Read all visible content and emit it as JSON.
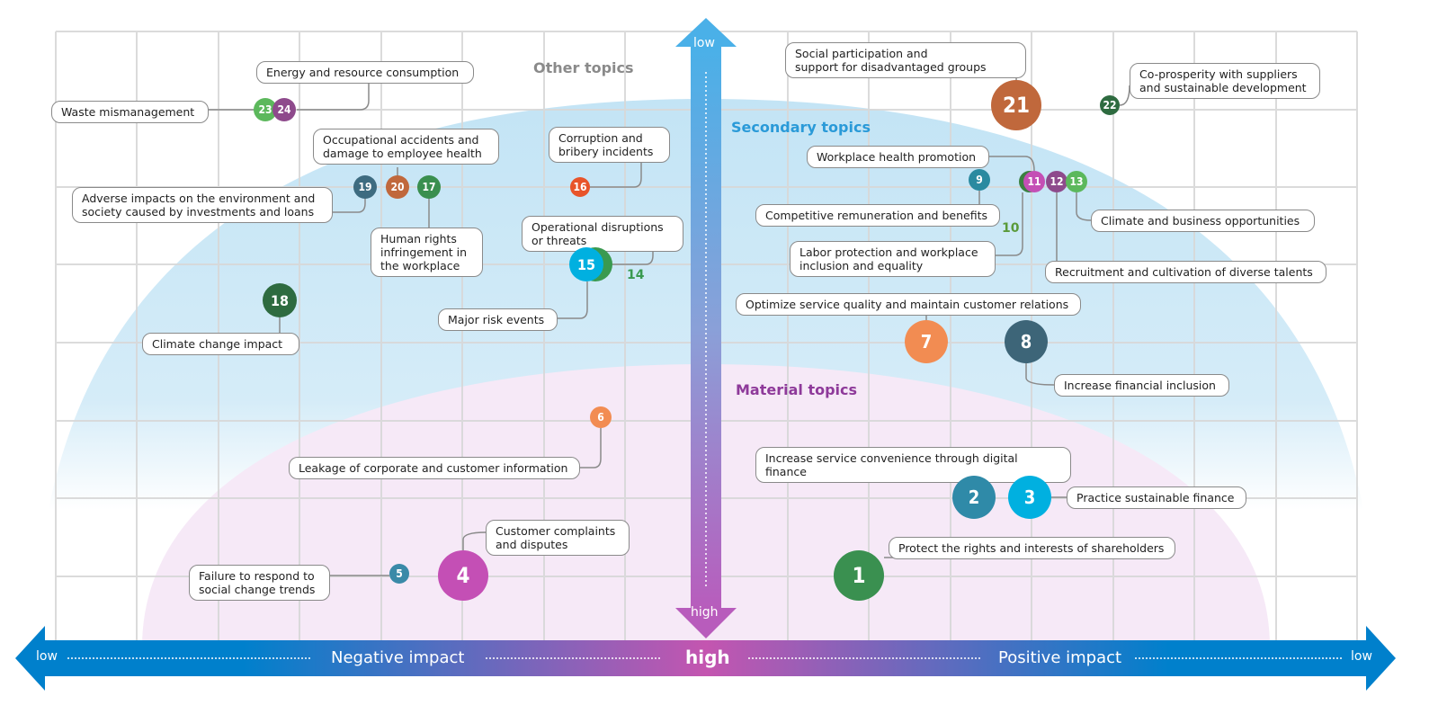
{
  "zones": {
    "other": "Other topics",
    "secondary": "Secondary topics",
    "material": "Material topics"
  },
  "axes": {
    "vertical_top": "low",
    "vertical_bottom": "high",
    "horizontal_left": "low",
    "horizontal_right": "low",
    "center": "high",
    "negative": "Negative impact",
    "positive": "Positive impact"
  },
  "colors": {
    "secondary_zone": "#c9e7f6",
    "material_zone": "#f6e8f6",
    "secondary_text": "#2a9ad8",
    "material_text": "#8e3a9a",
    "other_text": "#8a8a8a"
  },
  "topics": [
    {
      "n": "1",
      "label": "Protect the rights and interests of shareholders",
      "color": "#3a9050"
    },
    {
      "n": "2",
      "label": "Increase service convenience through digital finance",
      "color": "#2f8aa8"
    },
    {
      "n": "3",
      "label": "Practice sustainable finance",
      "color": "#00b0e0"
    },
    {
      "n": "4",
      "label": "Customer complaints\nand disputes",
      "color": "#c44fb5"
    },
    {
      "n": "5",
      "label": "Failure to respond to\nsocial change trends",
      "color": "#3a8aa8"
    },
    {
      "n": "6",
      "label": "Leakage of corporate and customer information",
      "color": "#f28c52"
    },
    {
      "n": "7",
      "label": "Optimize service quality and maintain customer relations",
      "color": "#f28c52"
    },
    {
      "n": "8",
      "label": "Increase financial inclusion",
      "color": "#3d6578"
    },
    {
      "n": "9",
      "label": "Competitive remuneration and benefits",
      "color": "#2a8aa0"
    },
    {
      "n": "10",
      "label": "Labor protection and workplace\ninclusion and equality",
      "color": "#3a8040"
    },
    {
      "n": "11",
      "label": "Workplace health promotion",
      "color": "#c44fb5"
    },
    {
      "n": "12",
      "label": "Recruitment and cultivation of diverse talents",
      "color": "#8e4a8c"
    },
    {
      "n": "13",
      "label": "Climate and business opportunities",
      "color": "#5cb85c"
    },
    {
      "n": "14",
      "label": "Major risk events",
      "color": "#3a9a50"
    },
    {
      "n": "15",
      "label": "Operational disruptions\nor threats",
      "color": "#00b0e0"
    },
    {
      "n": "16",
      "label": "Corruption and\nbribery incidents",
      "color": "#e8542a"
    },
    {
      "n": "17",
      "label": "Human rights\ninfringement in\nthe workplace",
      "color": "#3a8f4f"
    },
    {
      "n": "18",
      "label": "Climate change impact",
      "color": "#2e6b40"
    },
    {
      "n": "19",
      "label": "Adverse impacts on the environment and\nsociety caused by investments and loans",
      "color": "#3d6b80"
    },
    {
      "n": "20",
      "label": "Occupational accidents and\ndamage to employee health",
      "color": "#c0683c"
    },
    {
      "n": "21",
      "label": "Social participation and\nsupport for disadvantaged groups",
      "color": "#c0683c"
    },
    {
      "n": "22",
      "label": "Co-prosperity with suppliers\nand sustainable development",
      "color": "#2e6b40"
    },
    {
      "n": "23",
      "label": "Waste mismanagement",
      "color": "#5cb85c"
    },
    {
      "n": "24",
      "label": "Energy and resource consumption",
      "color": "#8e4a8c"
    }
  ]
}
